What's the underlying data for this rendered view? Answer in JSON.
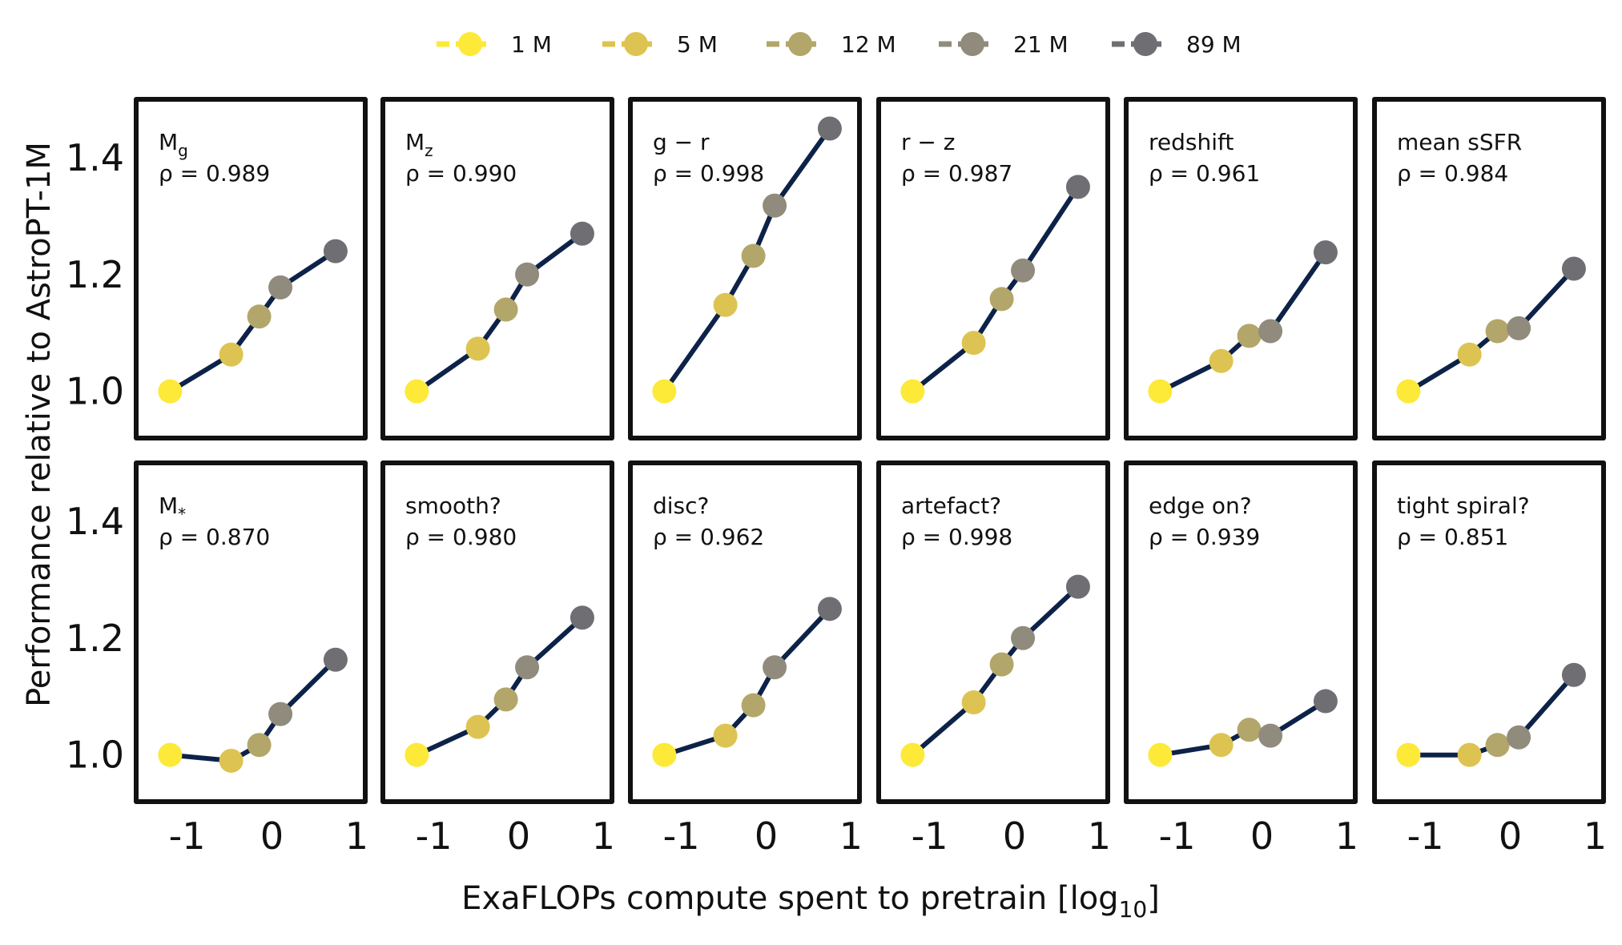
{
  "chart_data": {
    "type": "line",
    "xlabel": "ExaFLOPs compute spent to pretrain [log",
    "xlabel_sub": "10",
    "xlabel_end": "]",
    "ylabel": "Performance relative to AstroPT-1M",
    "xlim": [
      -1.6,
      1.1
    ],
    "ylim": [
      0.92,
      1.5
    ],
    "xticks": [
      "-1",
      "0",
      "1"
    ],
    "xtick_values": [
      -1,
      0,
      1
    ],
    "yticks": [
      "1.0",
      "1.2",
      "1.4"
    ],
    "ytick_values": [
      1.0,
      1.2,
      1.4
    ],
    "grid": false,
    "line_color": "#0d2248",
    "legend": {
      "placement": "top-center",
      "entries": [
        {
          "label": "1 M",
          "color": "#fde938"
        },
        {
          "label": "5 M",
          "color": "#ddc452"
        },
        {
          "label": "12 M",
          "color": "#b3a66a"
        },
        {
          "label": "21 M",
          "color": "#908b7c"
        },
        {
          "label": "89 M",
          "color": "#6f6e73"
        }
      ]
    },
    "x": [
      -1.2,
      -0.48,
      -0.15,
      0.1,
      0.75
    ],
    "panels": [
      {
        "label": "M",
        "label_sub": "g",
        "rho": "ρ = 0.989",
        "values": [
          1.0,
          1.063,
          1.128,
          1.178,
          1.24
        ]
      },
      {
        "label": "M",
        "label_sub": "z",
        "rho": "ρ = 0.990",
        "values": [
          1.0,
          1.073,
          1.14,
          1.2,
          1.27
        ]
      },
      {
        "label": "g − r",
        "label_sub": "",
        "rho": "ρ = 0.998",
        "values": [
          1.0,
          1.148,
          1.232,
          1.318,
          1.45
        ]
      },
      {
        "label": "r − z",
        "label_sub": "",
        "rho": "ρ = 0.987",
        "values": [
          1.0,
          1.083,
          1.158,
          1.207,
          1.35
        ]
      },
      {
        "label": "redshift",
        "label_sub": "",
        "rho": "ρ = 0.961",
        "values": [
          1.0,
          1.052,
          1.095,
          1.103,
          1.238
        ]
      },
      {
        "label": "mean sSFR",
        "label_sub": "",
        "rho": "ρ = 0.984",
        "values": [
          1.0,
          1.063,
          1.103,
          1.108,
          1.21
        ]
      },
      {
        "label": "M",
        "label_sub": "*",
        "rho": "ρ = 0.870",
        "values": [
          1.0,
          0.99,
          1.017,
          1.07,
          1.163
        ]
      },
      {
        "label": "smooth?",
        "label_sub": "",
        "rho": "ρ = 0.980",
        "values": [
          1.0,
          1.048,
          1.095,
          1.15,
          1.235
        ]
      },
      {
        "label": "disc?",
        "label_sub": "",
        "rho": "ρ = 0.962",
        "values": [
          1.0,
          1.033,
          1.085,
          1.15,
          1.25
        ]
      },
      {
        "label": "artefact?",
        "label_sub": "",
        "rho": "ρ = 0.998",
        "values": [
          1.0,
          1.09,
          1.155,
          1.2,
          1.288
        ]
      },
      {
        "label": "edge on?",
        "label_sub": "",
        "rho": "ρ = 0.939",
        "values": [
          1.0,
          1.017,
          1.043,
          1.033,
          1.092
        ]
      },
      {
        "label": "tight spiral?",
        "label_sub": "",
        "rho": "ρ = 0.851",
        "values": [
          1.0,
          1.0,
          1.017,
          1.03,
          1.137
        ]
      }
    ]
  }
}
